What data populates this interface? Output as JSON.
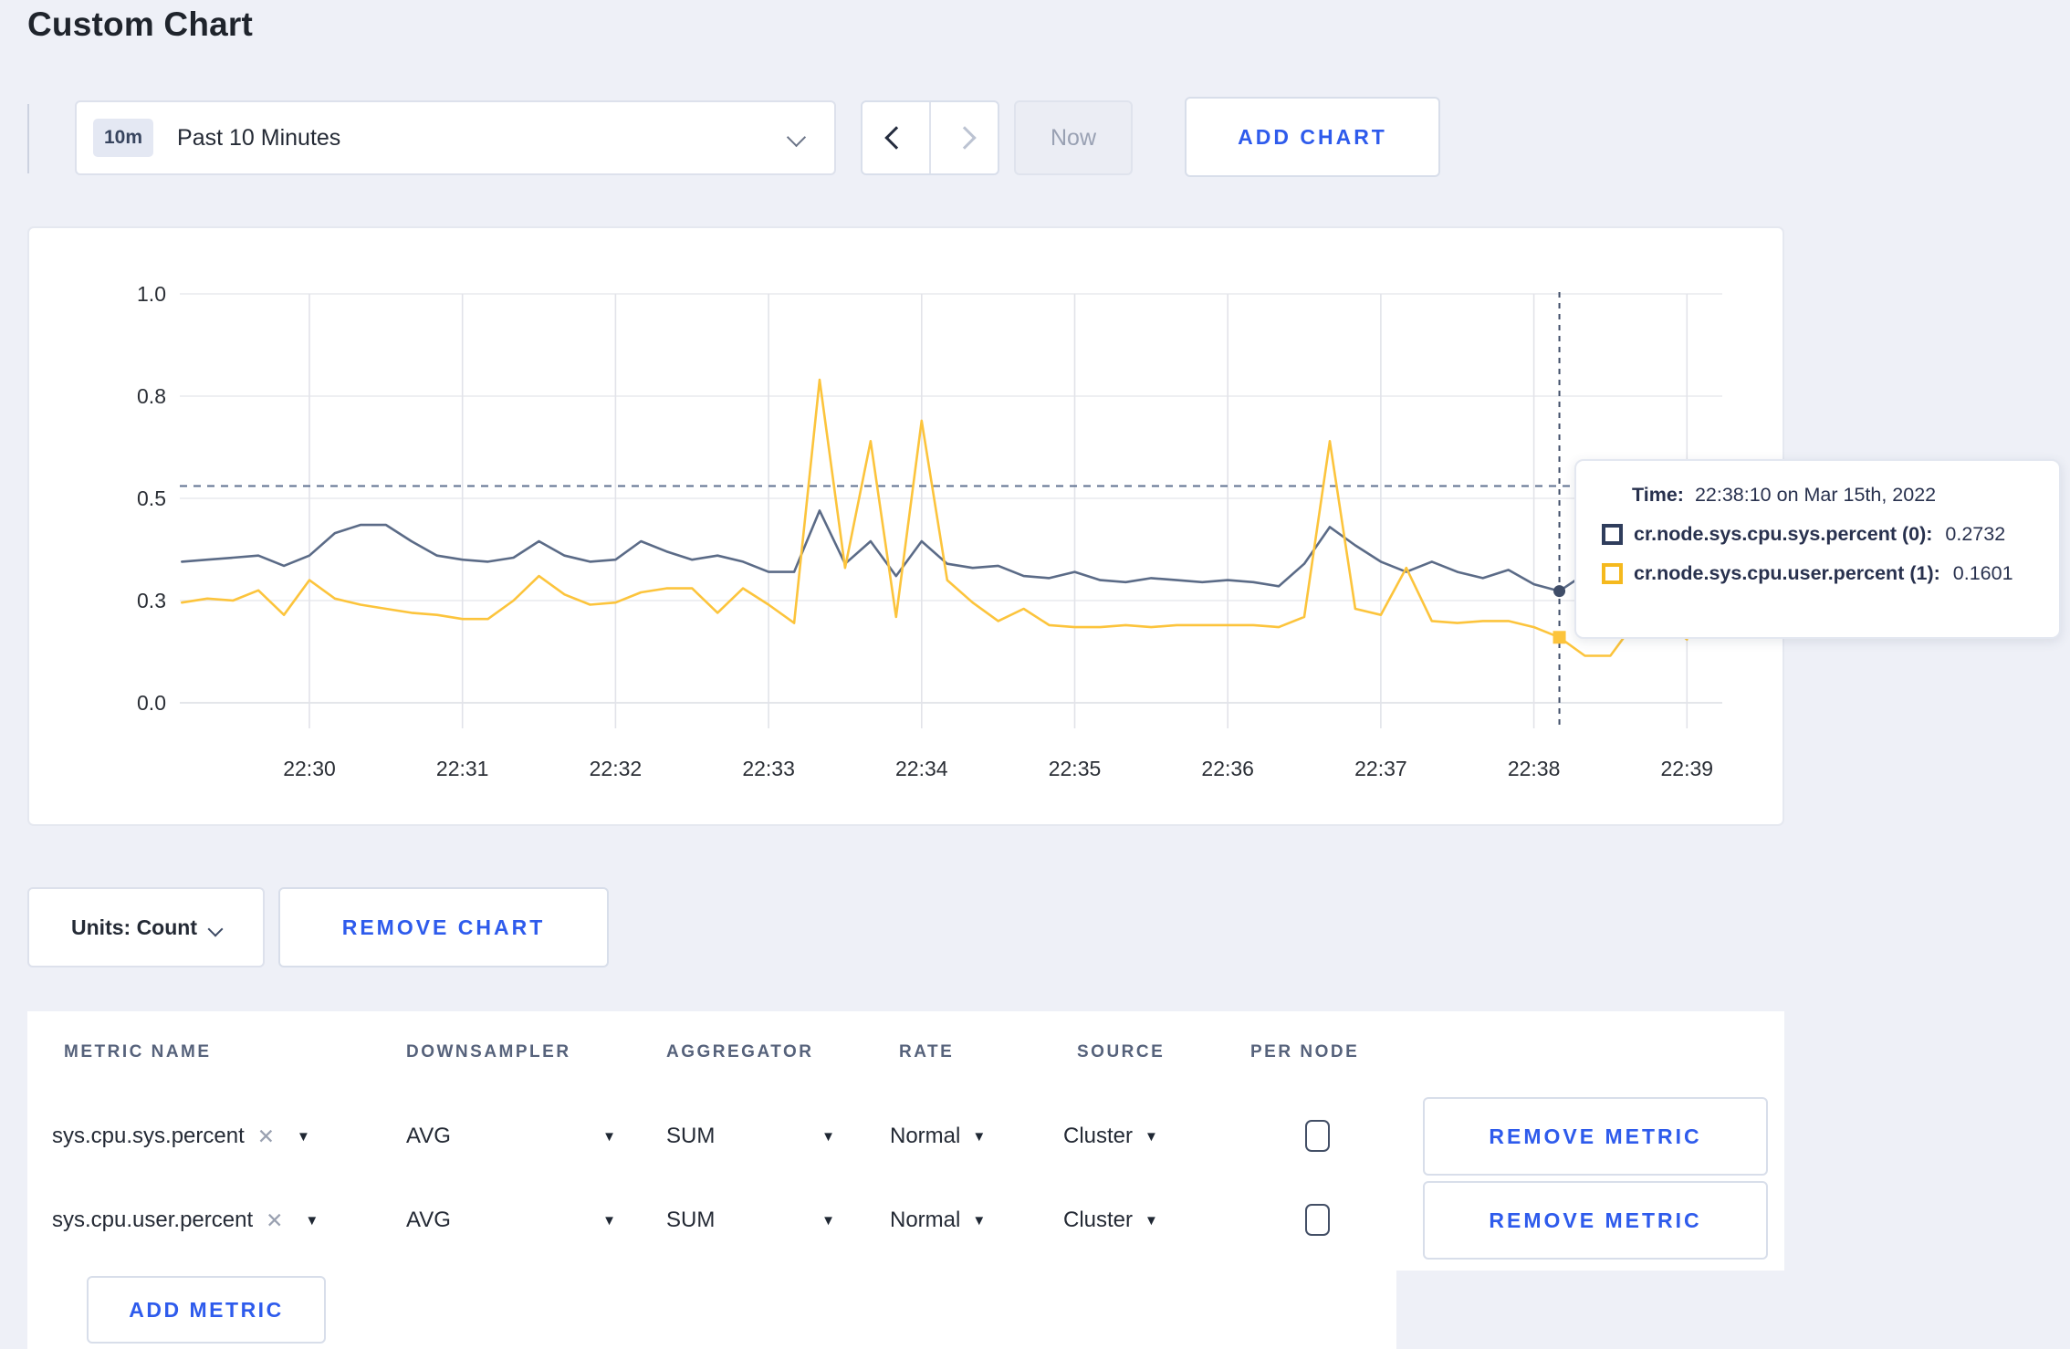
{
  "page": {
    "title": "Custom Chart"
  },
  "toolbar": {
    "time_badge": "10m",
    "time_label": "Past 10 Minutes",
    "now_label": "Now",
    "add_chart_label": "ADD CHART"
  },
  "chart_data": {
    "type": "line",
    "title": "",
    "xlabel": "",
    "ylabel": "",
    "ylim": [
      0,
      1.0
    ],
    "grid": true,
    "x_ticks": [
      "22:30",
      "22:31",
      "22:32",
      "22:33",
      "22:34",
      "22:35",
      "22:36",
      "22:37",
      "22:38",
      "22:39"
    ],
    "y_ticks": [
      "1.0",
      "0.8",
      "0.5",
      "0.3",
      "0.0"
    ],
    "x_start": "22:29:10",
    "interval_seconds": 10,
    "series": [
      {
        "name": "cr.node.sys.cpu.sys.percent (0)",
        "color": "#5b6b87",
        "values": [
          0.345,
          0.35,
          0.355,
          0.36,
          0.335,
          0.36,
          0.415,
          0.435,
          0.435,
          0.395,
          0.36,
          0.35,
          0.345,
          0.355,
          0.395,
          0.36,
          0.345,
          0.35,
          0.395,
          0.37,
          0.35,
          0.36,
          0.345,
          0.32,
          0.32,
          0.47,
          0.34,
          0.395,
          0.31,
          0.395,
          0.34,
          0.33,
          0.335,
          0.31,
          0.305,
          0.32,
          0.3,
          0.295,
          0.305,
          0.3,
          0.295,
          0.3,
          0.295,
          0.285,
          0.34,
          0.43,
          0.385,
          0.345,
          0.32,
          0.345,
          0.32,
          0.305,
          0.325,
          0.29,
          0.2732,
          0.315,
          0.3,
          0.305,
          0.3,
          0.305
        ]
      },
      {
        "name": "cr.node.sys.cpu.user.percent (1)",
        "color": "#fcc43c",
        "values": [
          0.245,
          0.255,
          0.25,
          0.275,
          0.215,
          0.3,
          0.255,
          0.24,
          0.23,
          0.22,
          0.215,
          0.205,
          0.205,
          0.25,
          0.31,
          0.265,
          0.24,
          0.245,
          0.27,
          0.28,
          0.28,
          0.22,
          0.28,
          0.24,
          0.195,
          0.79,
          0.33,
          0.64,
          0.21,
          0.69,
          0.3,
          0.245,
          0.2,
          0.23,
          0.19,
          0.185,
          0.185,
          0.19,
          0.185,
          0.19,
          0.19,
          0.19,
          0.19,
          0.185,
          0.21,
          0.64,
          0.23,
          0.215,
          0.33,
          0.2,
          0.195,
          0.2,
          0.2,
          0.185,
          0.1601,
          0.115,
          0.115,
          0.2,
          0.21,
          0.155
        ]
      }
    ],
    "crosshair": {
      "index": 54,
      "time": "22:38:10",
      "hline_value": 0.53
    },
    "legend_position": "tooltip"
  },
  "tooltip": {
    "time_label": "Time:",
    "time_value": "22:38:10 on Mar 15th, 2022",
    "rows": [
      {
        "label": "cr.node.sys.cpu.sys.percent (0):",
        "value": "0.2732",
        "color": "#2f3d5c"
      },
      {
        "label": "cr.node.sys.cpu.user.percent (1):",
        "value": "0.1601",
        "color": "#f5b91e"
      }
    ]
  },
  "chart_footer": {
    "units_label": "Units: Count",
    "remove_chart_label": "REMOVE CHART"
  },
  "metrics_table": {
    "headers": [
      "METRIC NAME",
      "DOWNSAMPLER",
      "AGGREGATOR",
      "RATE",
      "SOURCE",
      "PER NODE"
    ],
    "rows": [
      {
        "metric": "sys.cpu.sys.percent",
        "clear_icon": "✕",
        "downsampler": "AVG",
        "aggregator": "SUM",
        "rate": "Normal",
        "source": "Cluster",
        "per_node_checked": false,
        "remove_label": "REMOVE METRIC"
      },
      {
        "metric": "sys.cpu.user.percent",
        "clear_icon": "✕",
        "downsampler": "AVG",
        "aggregator": "SUM",
        "rate": "Normal",
        "source": "Cluster",
        "per_node_checked": false,
        "remove_label": "REMOVE METRIC"
      }
    ],
    "add_metric_label": "ADD METRIC"
  },
  "colors": {
    "accent_blue": "#2e5bec",
    "page_background": "#eef0f7",
    "series_sys": "#5b6b87",
    "series_user": "#fcc43c",
    "crosshair": "#3f4d68"
  }
}
